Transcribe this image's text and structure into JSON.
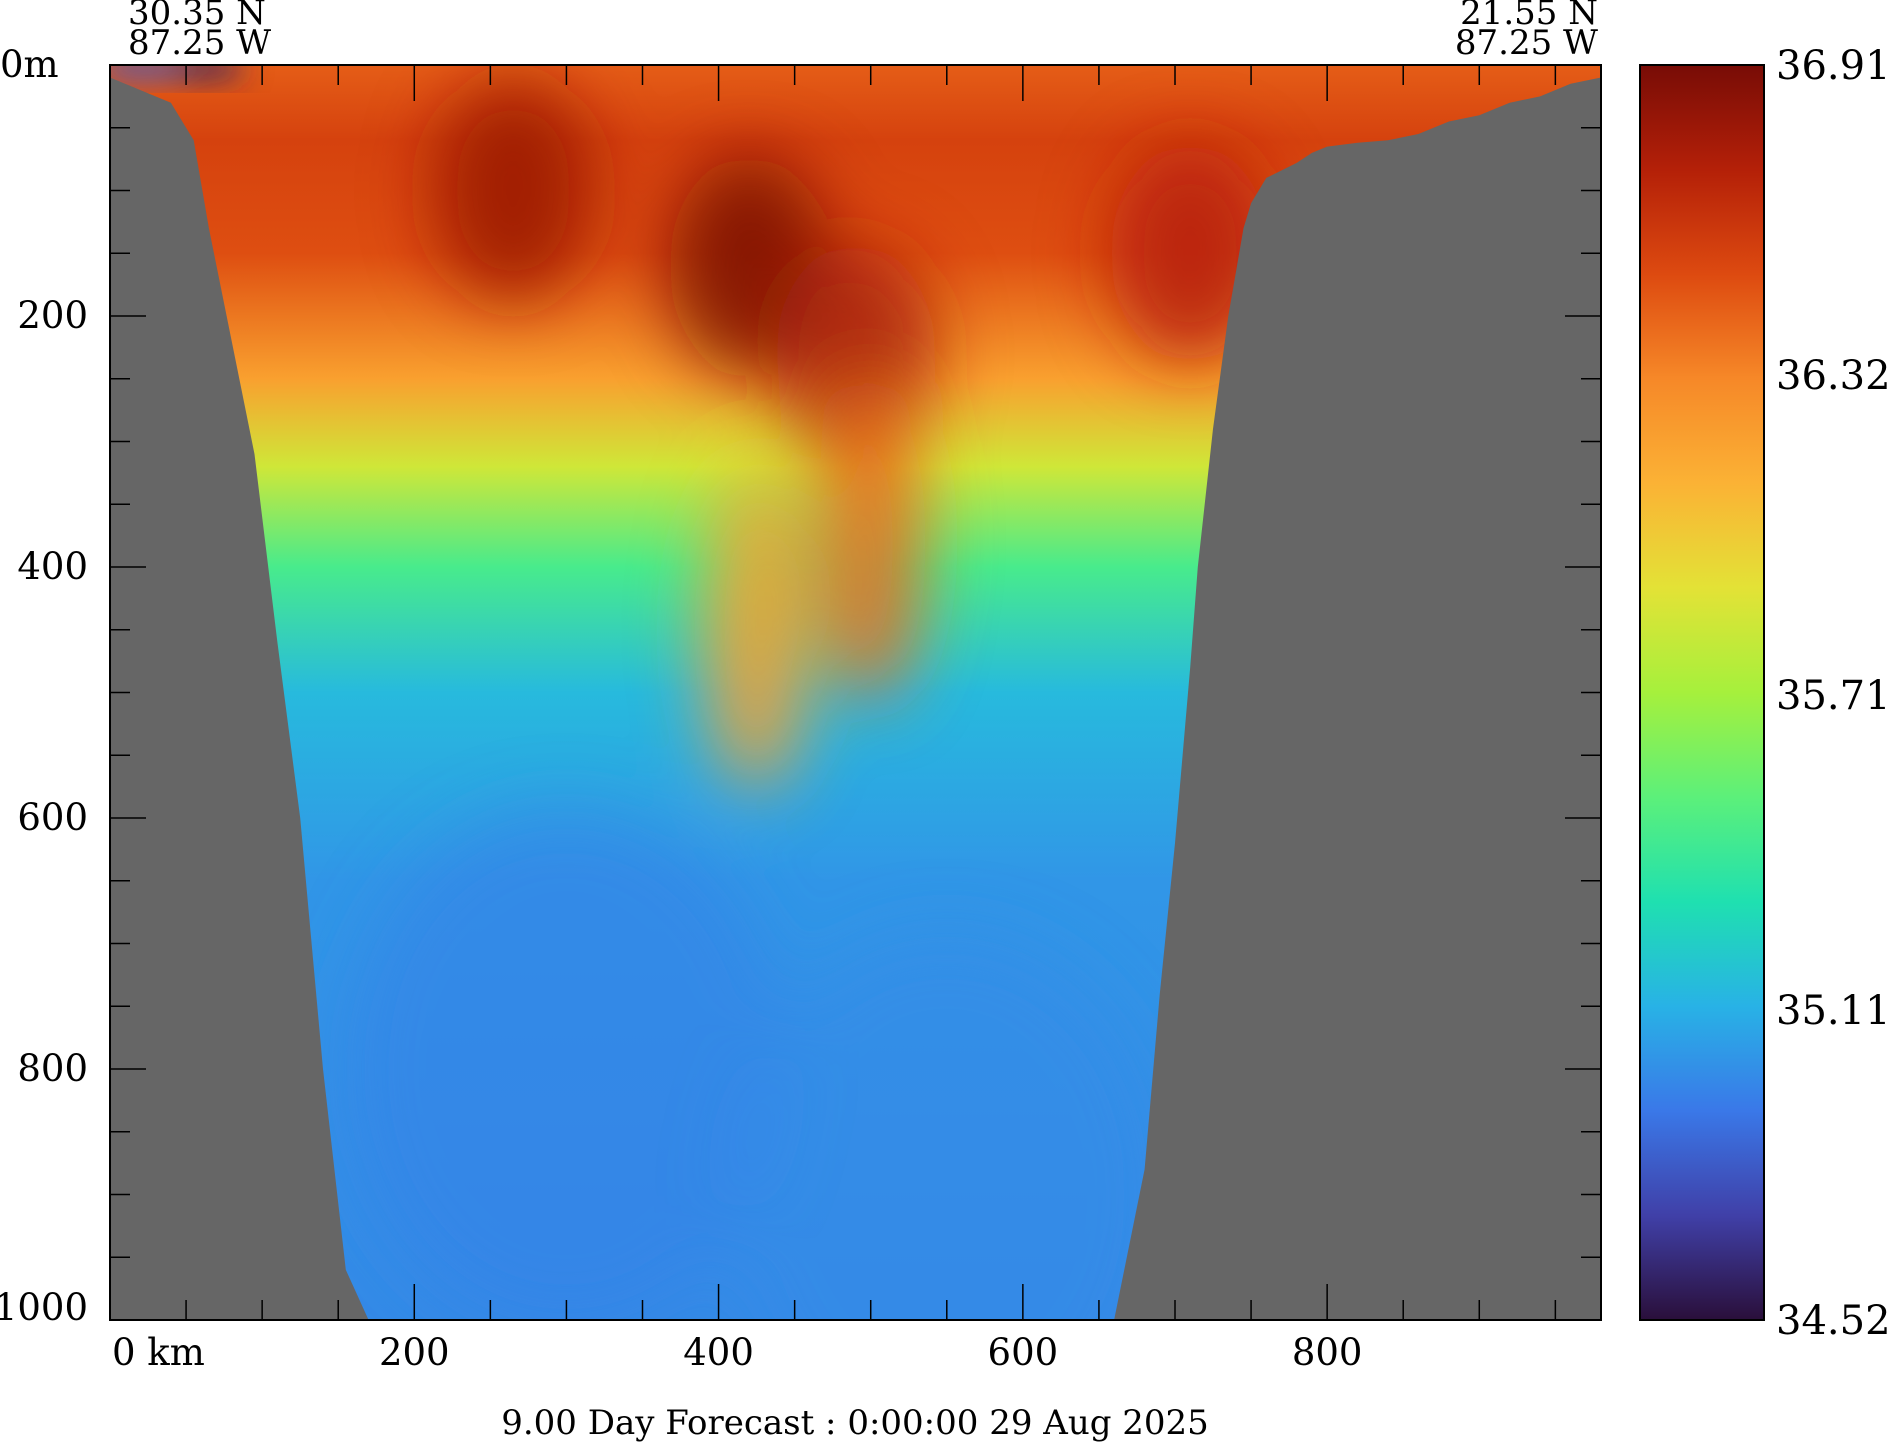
{
  "chart_data": {
    "type": "heatmap",
    "title": "",
    "caption": "9.00 Day Forecast :  0:00:00  29 Aug 2025",
    "xlabel": "",
    "ylabel": "",
    "x_unit": "km",
    "y_unit": "m",
    "xlim": [
      0,
      980
    ],
    "ylim": [
      0,
      1000
    ],
    "y_inverted": true,
    "x_ticks": [
      0,
      200,
      400,
      600,
      800
    ],
    "x_tick_labels": [
      "0 km",
      "200",
      "400",
      "600",
      "800"
    ],
    "x_minor_step": 50,
    "y_ticks": [
      0,
      200,
      400,
      600,
      800,
      1000
    ],
    "y_tick_labels": [
      "0m",
      "200",
      "400",
      "600",
      "800",
      "1000"
    ],
    "y_minor_step": 50,
    "start_point": {
      "lat": "30.35 N",
      "lon": "87.25 W"
    },
    "end_point": {
      "lat": "21.55 N",
      "lon": "87.25 W"
    },
    "colorbar": {
      "min": 34.52,
      "max": 36.91,
      "tick_values": [
        34.52,
        35.11,
        35.71,
        36.32,
        36.91
      ],
      "tick_labels": [
        "34.52",
        "35.11",
        "35.71",
        "36.32",
        "36.91"
      ],
      "colormap": [
        "#2a0f3a",
        "#4040a8",
        "#3a78e8",
        "#28b2e6",
        "#1fe0b0",
        "#5cf07a",
        "#a6f03c",
        "#e3e236",
        "#fbb235",
        "#f68828",
        "#dd4a10",
        "#b42008",
        "#780c06"
      ]
    },
    "land_color": "#666666",
    "bathymetry": {
      "x": [
        0,
        20,
        40,
        55,
        65,
        80,
        95,
        110,
        125,
        140,
        155,
        170,
        185,
        200,
        220,
        240,
        260,
        300,
        340,
        380,
        420,
        460,
        500,
        540,
        580,
        620,
        660,
        680,
        690,
        700,
        710,
        715,
        725,
        735,
        745,
        750,
        760,
        780,
        790,
        800,
        820,
        840,
        860,
        880,
        900,
        920,
        940,
        960,
        980
      ],
      "depth": [
        10,
        20,
        30,
        60,
        130,
        220,
        310,
        460,
        600,
        800,
        960,
        1000,
        1000,
        1000,
        1000,
        1000,
        1000,
        1000,
        1000,
        1000,
        1000,
        1000,
        1000,
        1000,
        1000,
        1000,
        1000,
        880,
        740,
        620,
        480,
        400,
        290,
        200,
        130,
        110,
        90,
        78,
        70,
        65,
        62,
        60,
        55,
        45,
        40,
        30,
        25,
        15,
        10
      ]
    },
    "salinity_features": [
      {
        "label": "surface fresh lens",
        "x": 60,
        "depth": 3,
        "value": 34.6
      },
      {
        "label": "surface fresh lens",
        "x": 20,
        "depth": 3,
        "value": 34.8
      },
      {
        "label": "high-salinity core",
        "x": 265,
        "depth": 100,
        "value": 36.8
      },
      {
        "label": "high-salinity core",
        "x": 420,
        "depth": 160,
        "value": 36.91
      },
      {
        "label": "high-salinity core",
        "x": 490,
        "depth": 230,
        "value": 36.75
      },
      {
        "label": "high-salinity core",
        "x": 710,
        "depth": 150,
        "value": 36.7
      },
      {
        "label": "subsurface salty tongue",
        "x": 425,
        "depth": 450,
        "value": 36.2
      },
      {
        "label": "subsurface salty tongue",
        "x": 500,
        "depth": 380,
        "value": 36.4
      },
      {
        "label": "deep water",
        "x": 300,
        "depth": 800,
        "value": 34.95
      },
      {
        "label": "deep water",
        "x": 550,
        "depth": 900,
        "value": 34.98
      }
    ]
  }
}
